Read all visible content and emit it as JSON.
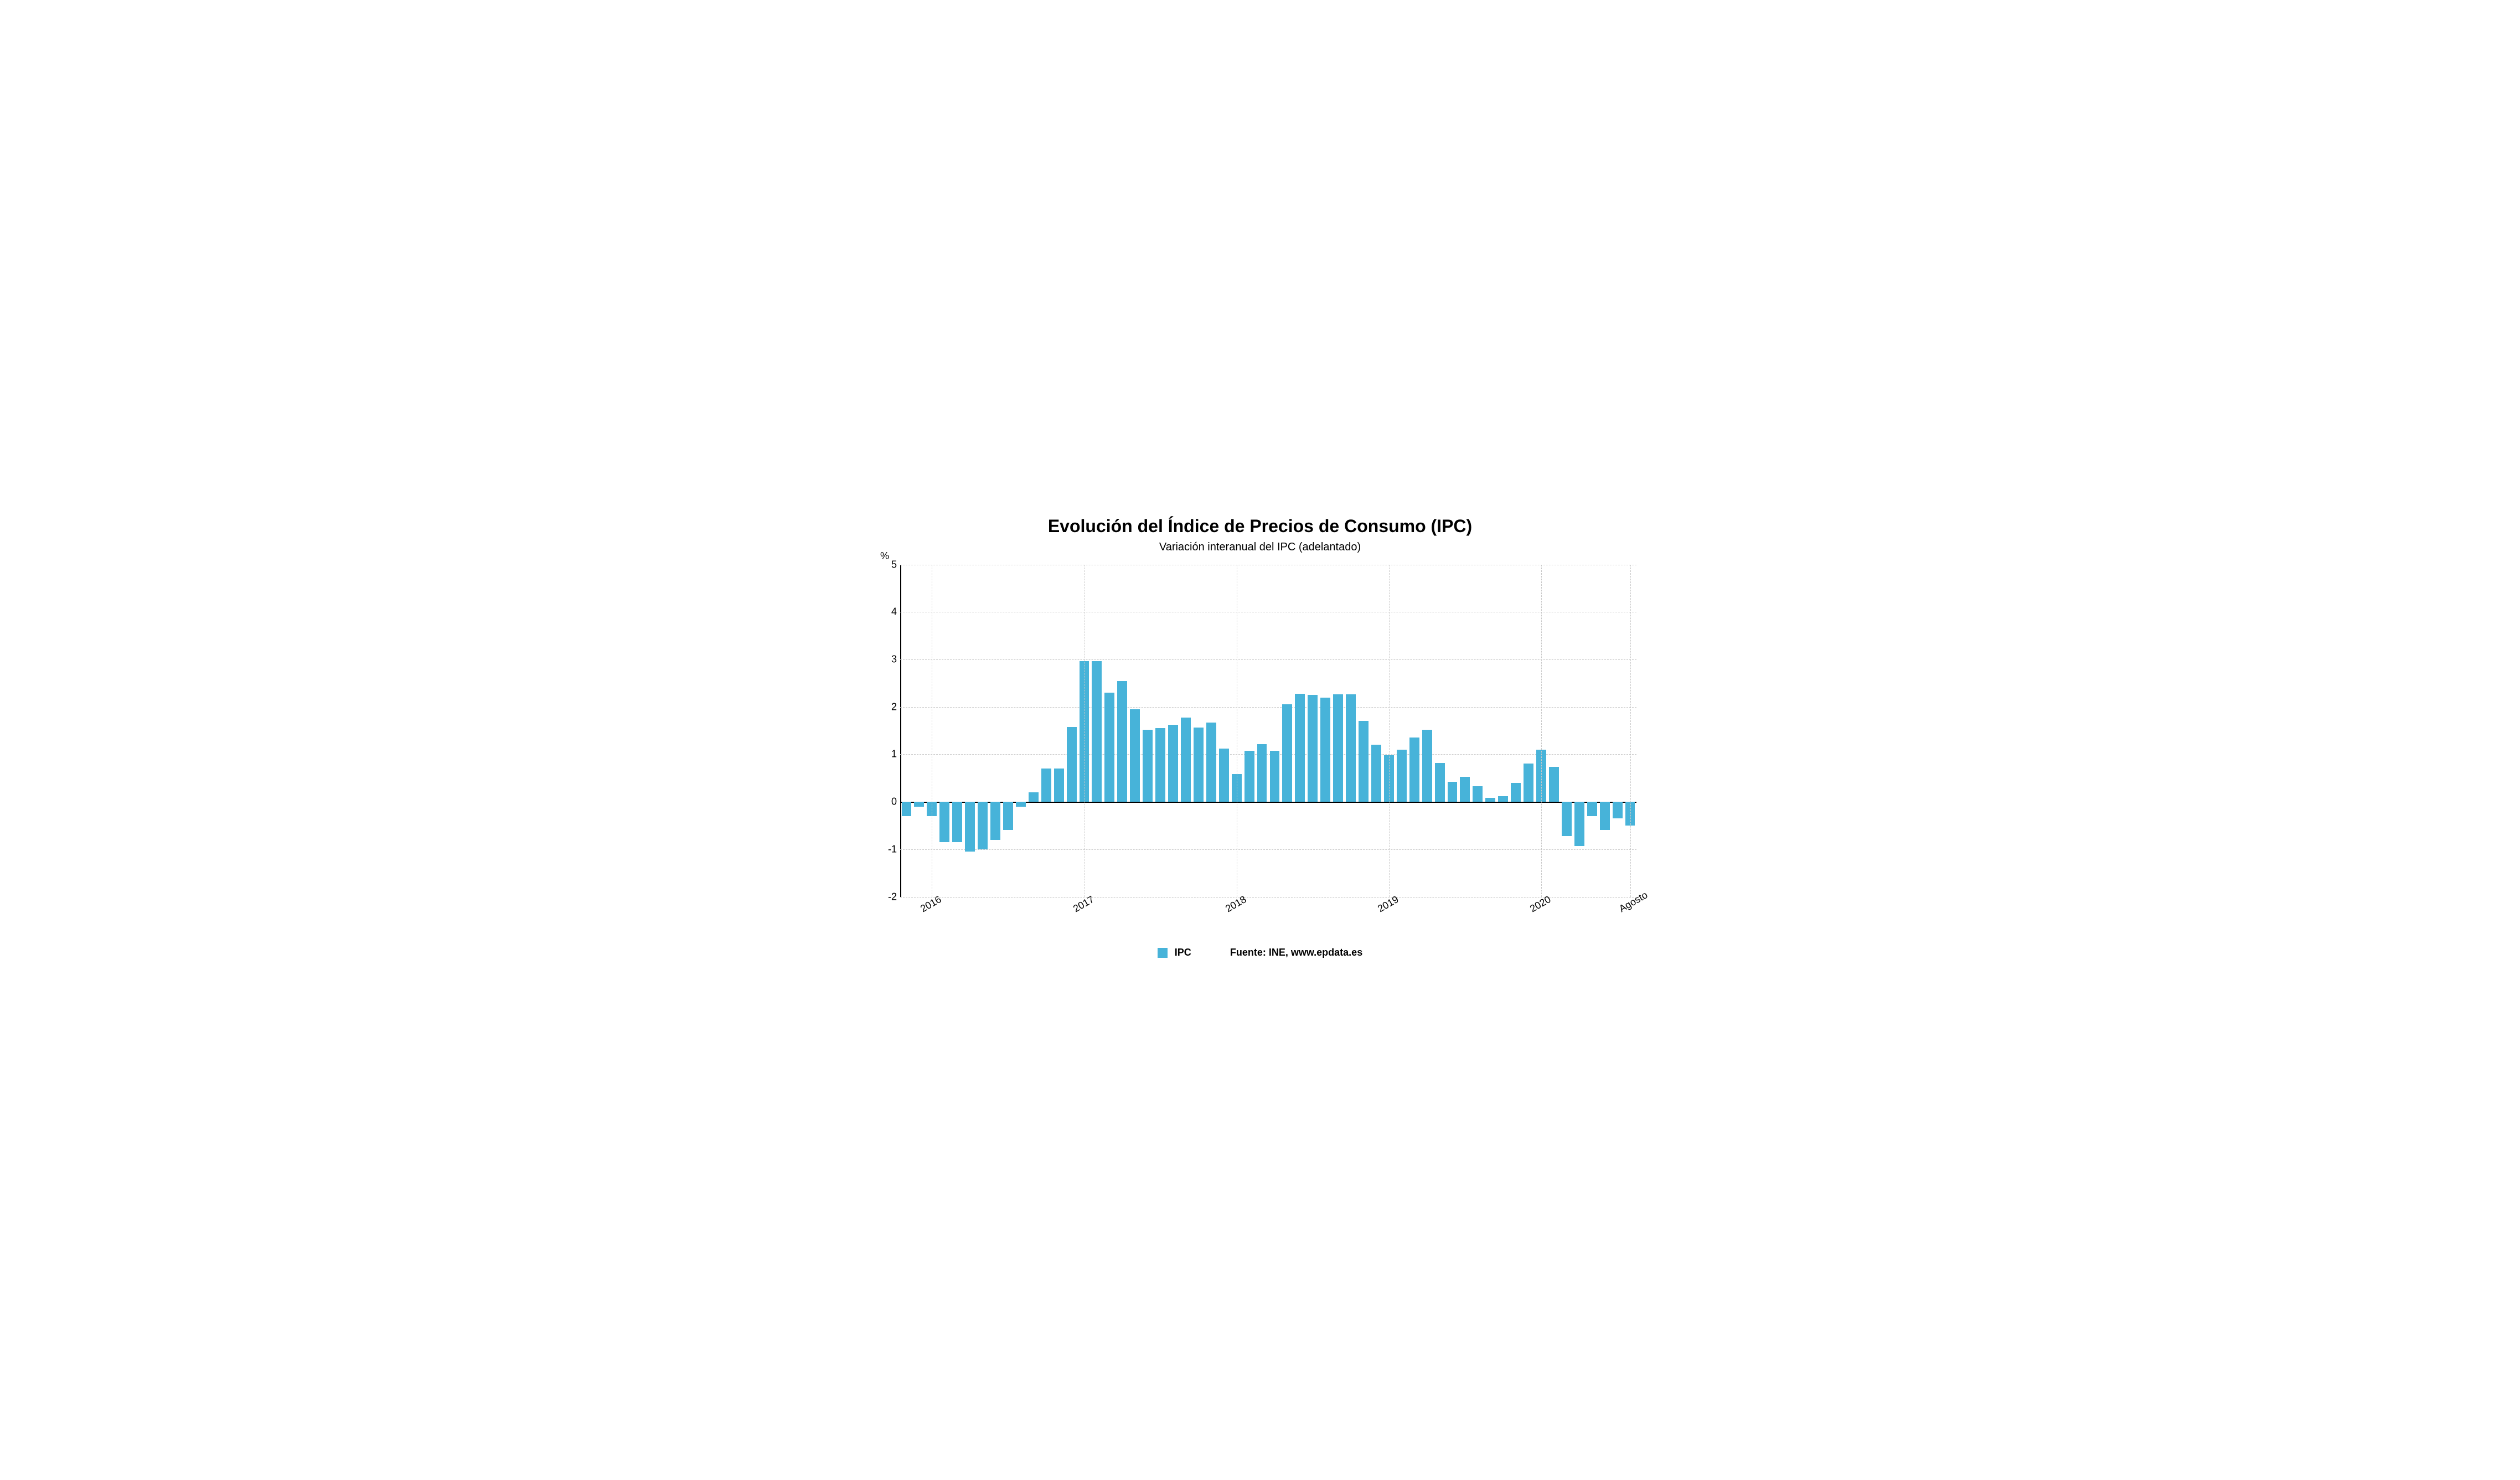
{
  "chart": {
    "type": "bar",
    "title": "Evolución del Índice de Precios de Consumo (IPC)",
    "subtitle": "Variación interanual del IPC (adelantado)",
    "y_axis_label": "%",
    "ylim": [
      -2,
      5
    ],
    "yticks": [
      -2,
      -1,
      0,
      1,
      2,
      3,
      4,
      5
    ],
    "x_major_labels": [
      {
        "label": "2016",
        "at_index": 2
      },
      {
        "label": "2017",
        "at_index": 14
      },
      {
        "label": "2018",
        "at_index": 26
      },
      {
        "label": "2019",
        "at_index": 38
      },
      {
        "label": "2020",
        "at_index": 50
      },
      {
        "label": "Agosto",
        "at_index": 57
      }
    ],
    "values": [
      -0.3,
      -0.1,
      -0.3,
      -0.85,
      -0.85,
      -1.05,
      -1.0,
      -0.8,
      -0.6,
      -0.1,
      0.2,
      0.7,
      0.7,
      1.58,
      2.97,
      2.97,
      2.3,
      2.55,
      1.95,
      1.52,
      1.55,
      1.62,
      1.78,
      1.57,
      1.67,
      1.12,
      0.58,
      1.07,
      1.22,
      1.08,
      2.05,
      2.28,
      2.25,
      2.2,
      2.26,
      2.27,
      1.7,
      1.2,
      0.98,
      1.1,
      1.35,
      1.52,
      0.82,
      0.42,
      0.53,
      0.33,
      0.08,
      0.12,
      0.4,
      0.81,
      1.1,
      0.74,
      -0.72,
      -0.93,
      -0.3,
      -0.6,
      -0.35,
      -0.5
    ],
    "bar_color": "#47b3d9",
    "bar_width_ratio": 0.78,
    "background_color": "#ffffff",
    "grid_color": "#c8c8c8",
    "axis_color": "#000000",
    "title_fontsize": 32,
    "subtitle_fontsize": 20,
    "label_fontsize": 18,
    "legend": {
      "series_label": "IPC",
      "source_text": "Fuente: INE, www.epdata.es",
      "swatch_color": "#47b3d9"
    }
  }
}
